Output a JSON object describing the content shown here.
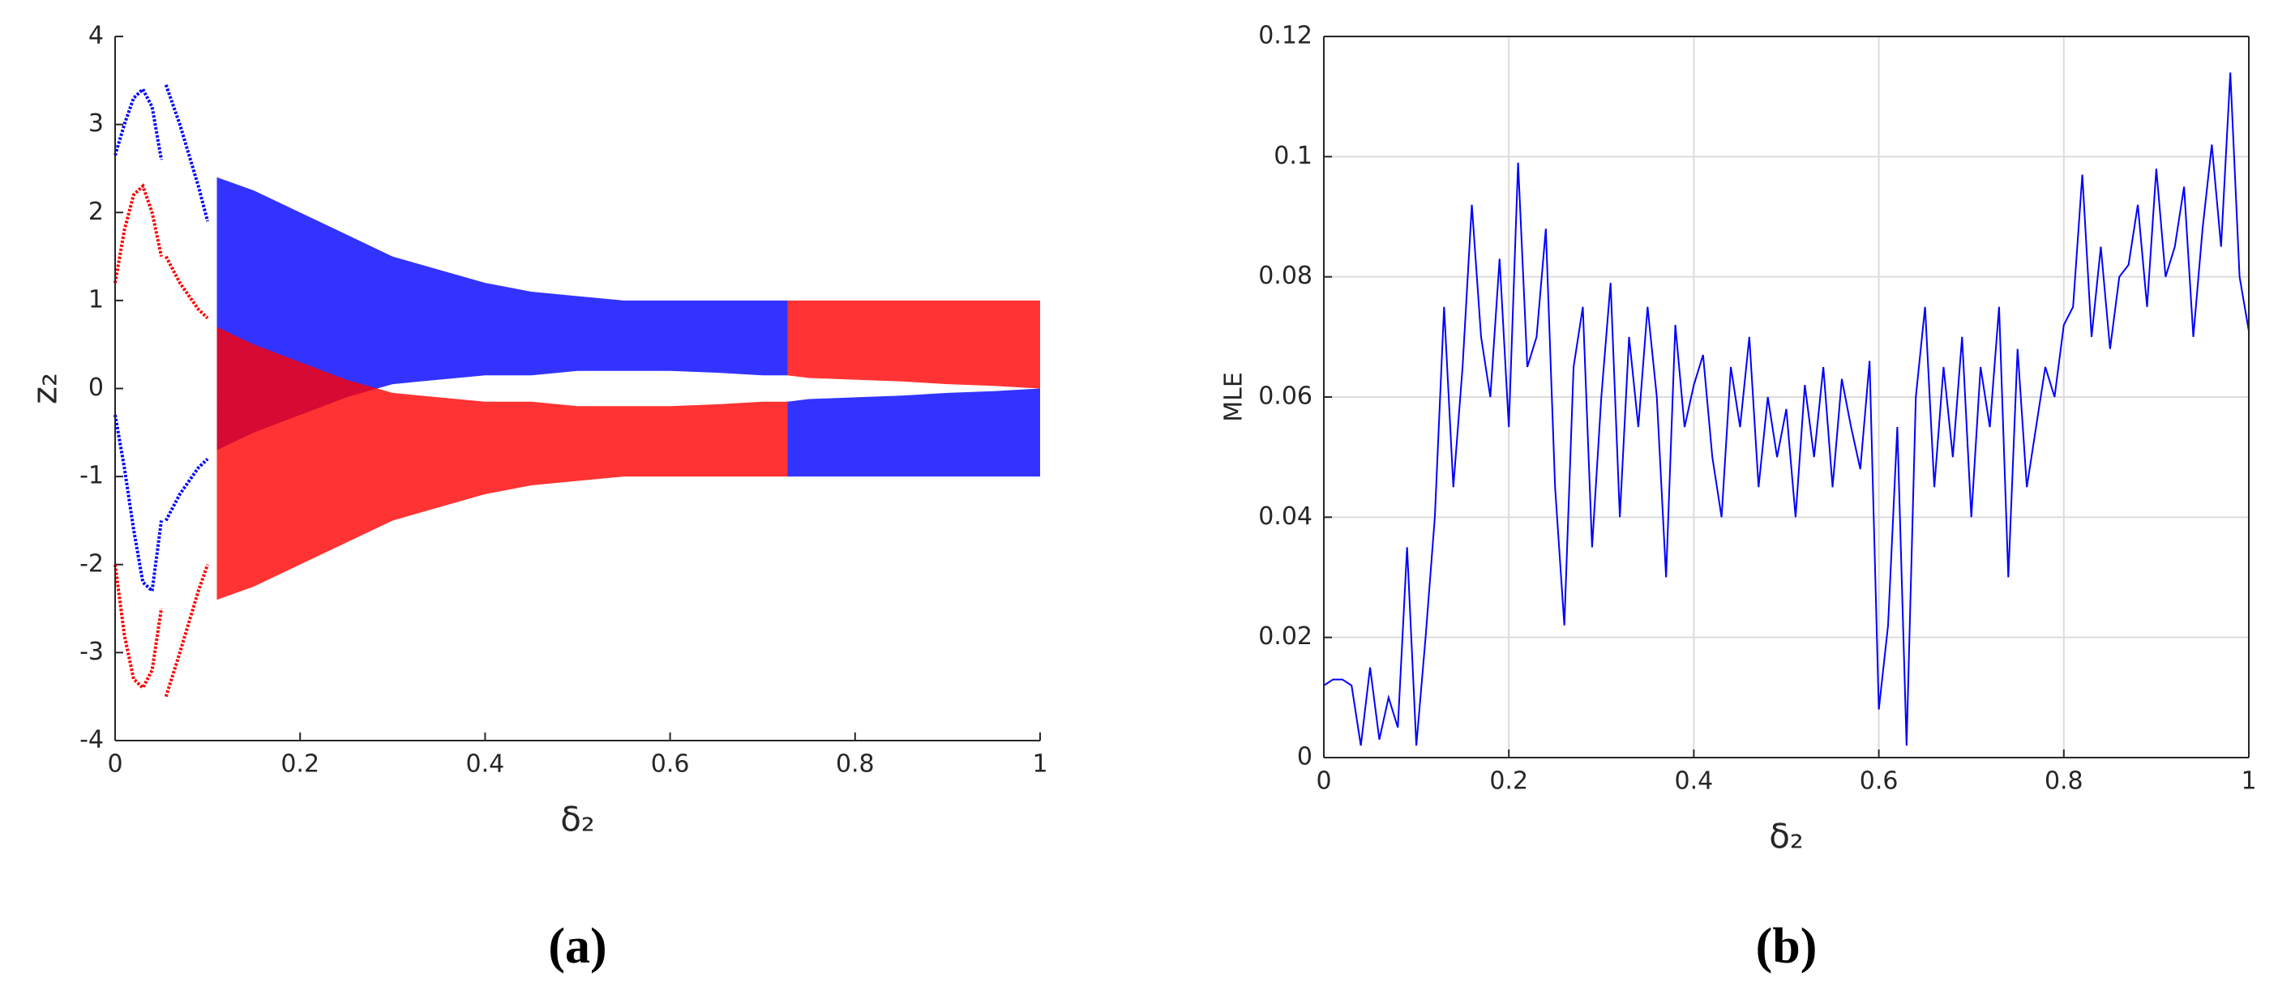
{
  "chart_data": [
    {
      "type": "bifurcation",
      "xlabel": "δ₂",
      "ylabel": "z₂",
      "panel_label": "(a)",
      "xlim": [
        0,
        1
      ],
      "ylim": [
        -4,
        4
      ],
      "xticks": [
        0,
        0.2,
        0.4,
        0.6,
        0.8,
        1
      ],
      "yticks": [
        -4,
        -3,
        -2,
        -1,
        0,
        1,
        2,
        3,
        4
      ],
      "grid": false,
      "box": false,
      "series": [
        {
          "color": "#0000ff",
          "x": [
            0.11,
            0.15,
            0.2,
            0.25,
            0.3,
            0.35,
            0.4,
            0.45,
            0.5,
            0.55,
            0.6,
            0.65,
            0.7,
            0.727
          ],
          "upper": [
            2.4,
            2.25,
            2.0,
            1.75,
            1.5,
            1.35,
            1.2,
            1.1,
            1.05,
            1.0,
            1.0,
            1.0,
            1.0,
            1.0
          ],
          "lower": [
            -0.7,
            -0.5,
            -0.3,
            -0.1,
            0.05,
            0.1,
            0.15,
            0.15,
            0.2,
            0.2,
            0.2,
            0.18,
            0.15,
            0.15
          ]
        },
        {
          "color": "#ff0000",
          "x": [
            0.11,
            0.15,
            0.2,
            0.25,
            0.3,
            0.35,
            0.4,
            0.45,
            0.5,
            0.55,
            0.6,
            0.65,
            0.7,
            0.727
          ],
          "upper": [
            0.7,
            0.5,
            0.3,
            0.1,
            -0.05,
            -0.1,
            -0.15,
            -0.15,
            -0.2,
            -0.2,
            -0.2,
            -0.18,
            -0.15,
            -0.15
          ],
          "lower": [
            -2.4,
            -2.25,
            -2.0,
            -1.75,
            -1.5,
            -1.35,
            -1.2,
            -1.1,
            -1.05,
            -1.0,
            -1.0,
            -1.0,
            -1.0,
            -1.0
          ]
        },
        {
          "color": "#ff0000",
          "x": [
            0.727,
            0.75,
            0.8,
            0.85,
            0.9,
            0.95,
            1
          ],
          "upper": [
            1.0,
            1.0,
            1.0,
            1.0,
            1.0,
            1.0,
            1.0
          ],
          "lower": [
            0.15,
            0.12,
            0.1,
            0.08,
            0.05,
            0.03,
            0
          ]
        },
        {
          "color": "#0000ff",
          "x": [
            0.727,
            0.75,
            0.8,
            0.85,
            0.9,
            0.95,
            1
          ],
          "upper": [
            -0.15,
            -0.12,
            -0.1,
            -0.08,
            -0.05,
            -0.03,
            0
          ],
          "lower": [
            -1.0,
            -1.0,
            -1.0,
            -1.0,
            -1.0,
            -1.0,
            -1.0
          ]
        },
        {
          "color": "#0000ff",
          "x": [
            0,
            0.01,
            0.02,
            0.03,
            0.04,
            0.05
          ],
          "values": [
            2.65,
            3.0,
            3.3,
            3.4,
            3.2,
            2.6
          ]
        },
        {
          "color": "#0000ff",
          "x": [
            0.055,
            0.07,
            0.09,
            0.1
          ],
          "values": [
            3.45,
            3.0,
            2.3,
            1.9
          ]
        },
        {
          "color": "#0000ff",
          "x": [
            0,
            0.01,
            0.02,
            0.03,
            0.04,
            0.05
          ],
          "values": [
            -0.3,
            -0.9,
            -1.6,
            -2.2,
            -2.3,
            -1.5
          ]
        },
        {
          "color": "#0000ff",
          "x": [
            0.055,
            0.07,
            0.09,
            0.1
          ],
          "values": [
            -1.5,
            -1.2,
            -0.9,
            -0.8
          ]
        },
        {
          "color": "#ff0000",
          "x": [
            0,
            0.01,
            0.02,
            0.03,
            0.04,
            0.05
          ],
          "values": [
            1.2,
            1.8,
            2.2,
            2.3,
            2.0,
            1.5
          ]
        },
        {
          "color": "#ff0000",
          "x": [
            0.055,
            0.07,
            0.09,
            0.1
          ],
          "values": [
            1.5,
            1.2,
            0.9,
            0.8
          ]
        },
        {
          "color": "#ff0000",
          "x": [
            0,
            0.01,
            0.02,
            0.03,
            0.04,
            0.05
          ],
          "values": [
            -2.0,
            -2.8,
            -3.3,
            -3.4,
            -3.2,
            -2.5
          ]
        },
        {
          "color": "#ff0000",
          "x": [
            0.055,
            0.07,
            0.09,
            0.1
          ],
          "values": [
            -3.5,
            -3.0,
            -2.3,
            -2.0
          ]
        }
      ]
    },
    {
      "type": "line",
      "xlabel": "δ₂",
      "ylabel": "MLE",
      "panel_label": "(b)",
      "xlim": [
        0,
        1
      ],
      "ylim": [
        0,
        0.12
      ],
      "xticks": [
        0,
        0.2,
        0.4,
        0.6,
        0.8,
        1
      ],
      "yticks": [
        0,
        0.02,
        0.04,
        0.06,
        0.08,
        0.1,
        0.12
      ],
      "grid": true,
      "box": true,
      "series": [
        {
          "color": "#0000ff",
          "x": [
            0,
            0.01,
            0.02,
            0.03,
            0.04,
            0.05,
            0.06,
            0.07,
            0.08,
            0.09,
            0.1,
            0.11,
            0.12,
            0.13,
            0.14,
            0.15,
            0.16,
            0.17,
            0.18,
            0.19,
            0.2,
            0.21,
            0.22,
            0.23,
            0.24,
            0.25,
            0.26,
            0.27,
            0.28,
            0.29,
            0.3,
            0.31,
            0.32,
            0.33,
            0.34,
            0.35,
            0.36,
            0.37,
            0.38,
            0.39,
            0.4,
            0.41,
            0.42,
            0.43,
            0.44,
            0.45,
            0.46,
            0.47,
            0.48,
            0.49,
            0.5,
            0.51,
            0.52,
            0.53,
            0.54,
            0.55,
            0.56,
            0.57,
            0.58,
            0.59,
            0.6,
            0.61,
            0.62,
            0.63,
            0.64,
            0.65,
            0.66,
            0.67,
            0.68,
            0.69,
            0.7,
            0.71,
            0.72,
            0.73,
            0.74,
            0.75,
            0.76,
            0.77,
            0.78,
            0.79,
            0.8,
            0.81,
            0.82,
            0.83,
            0.84,
            0.85,
            0.86,
            0.87,
            0.88,
            0.89,
            0.9,
            0.91,
            0.92,
            0.93,
            0.94,
            0.95,
            0.96,
            0.97,
            0.98,
            0.99,
            1
          ],
          "values": [
            0.012,
            0.013,
            0.013,
            0.012,
            0.002,
            0.015,
            0.003,
            0.01,
            0.005,
            0.035,
            0.002,
            0.02,
            0.04,
            0.075,
            0.045,
            0.065,
            0.092,
            0.07,
            0.06,
            0.083,
            0.055,
            0.099,
            0.065,
            0.07,
            0.088,
            0.045,
            0.022,
            0.065,
            0.075,
            0.035,
            0.06,
            0.079,
            0.04,
            0.07,
            0.055,
            0.075,
            0.06,
            0.03,
            0.072,
            0.055,
            0.062,
            0.067,
            0.05,
            0.04,
            0.065,
            0.055,
            0.07,
            0.045,
            0.06,
            0.05,
            0.058,
            0.04,
            0.062,
            0.05,
            0.065,
            0.045,
            0.063,
            0.055,
            0.048,
            0.066,
            0.008,
            0.022,
            0.055,
            0.002,
            0.06,
            0.075,
            0.045,
            0.065,
            0.05,
            0.07,
            0.04,
            0.065,
            0.055,
            0.075,
            0.03,
            0.068,
            0.045,
            0.055,
            0.065,
            0.06,
            0.072,
            0.075,
            0.097,
            0.07,
            0.085,
            0.068,
            0.08,
            0.082,
            0.092,
            0.075,
            0.098,
            0.08,
            0.085,
            0.095,
            0.07,
            0.088,
            0.102,
            0.085,
            0.114,
            0.08,
            0.071
          ]
        }
      ]
    }
  ]
}
